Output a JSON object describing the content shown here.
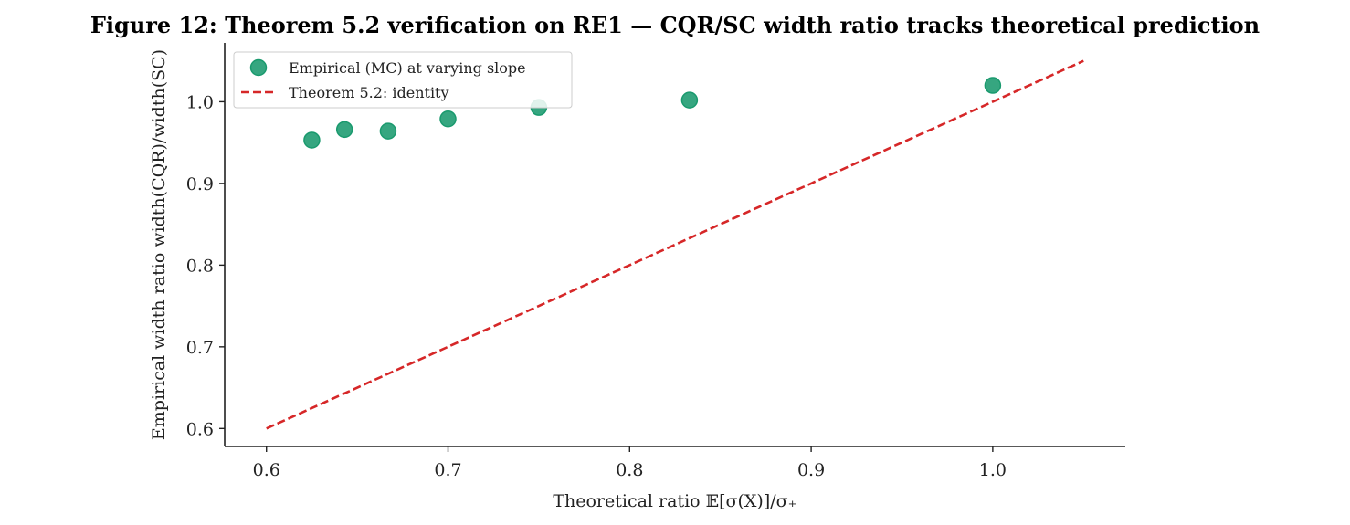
{
  "chart_data": {
    "type": "scatter",
    "title": "Figure 12: Theorem 5.2 verification on RE1 — CQR/SC width ratio tracks theoretical prediction",
    "xlabel": "Theoretical ratio  𝔼[σ(X)]/σ₊",
    "ylabel": "Empirical width ratio  width(CQR)/width(SC)",
    "xlim": [
      0.577,
      1.073
    ],
    "ylim": [
      0.578,
      1.072
    ],
    "xticks": [
      0.6,
      0.7,
      0.8,
      0.9,
      1.0
    ],
    "yticks": [
      0.6,
      0.7,
      0.8,
      0.9,
      1.0
    ],
    "xtick_labels": [
      "0.6",
      "0.7",
      "0.8",
      "0.9",
      "1.0"
    ],
    "ytick_labels": [
      "0.6",
      "0.7",
      "0.8",
      "0.9",
      "1.0"
    ],
    "grid": false,
    "legend_position": "top-left",
    "series": [
      {
        "name": "Empirical (MC) at varying slope",
        "kind": "scatter",
        "color": "#1a9a6e",
        "x": [
          0.625,
          0.643,
          0.667,
          0.7,
          0.75,
          0.833,
          1.0
        ],
        "y": [
          0.953,
          0.966,
          0.964,
          0.979,
          0.993,
          1.002,
          1.02
        ]
      },
      {
        "name": "Theorem 5.2: identity",
        "kind": "line",
        "style": "dashed",
        "color": "#d62728",
        "x": [
          0.6,
          1.05
        ],
        "y": [
          0.6,
          1.05
        ]
      }
    ]
  }
}
